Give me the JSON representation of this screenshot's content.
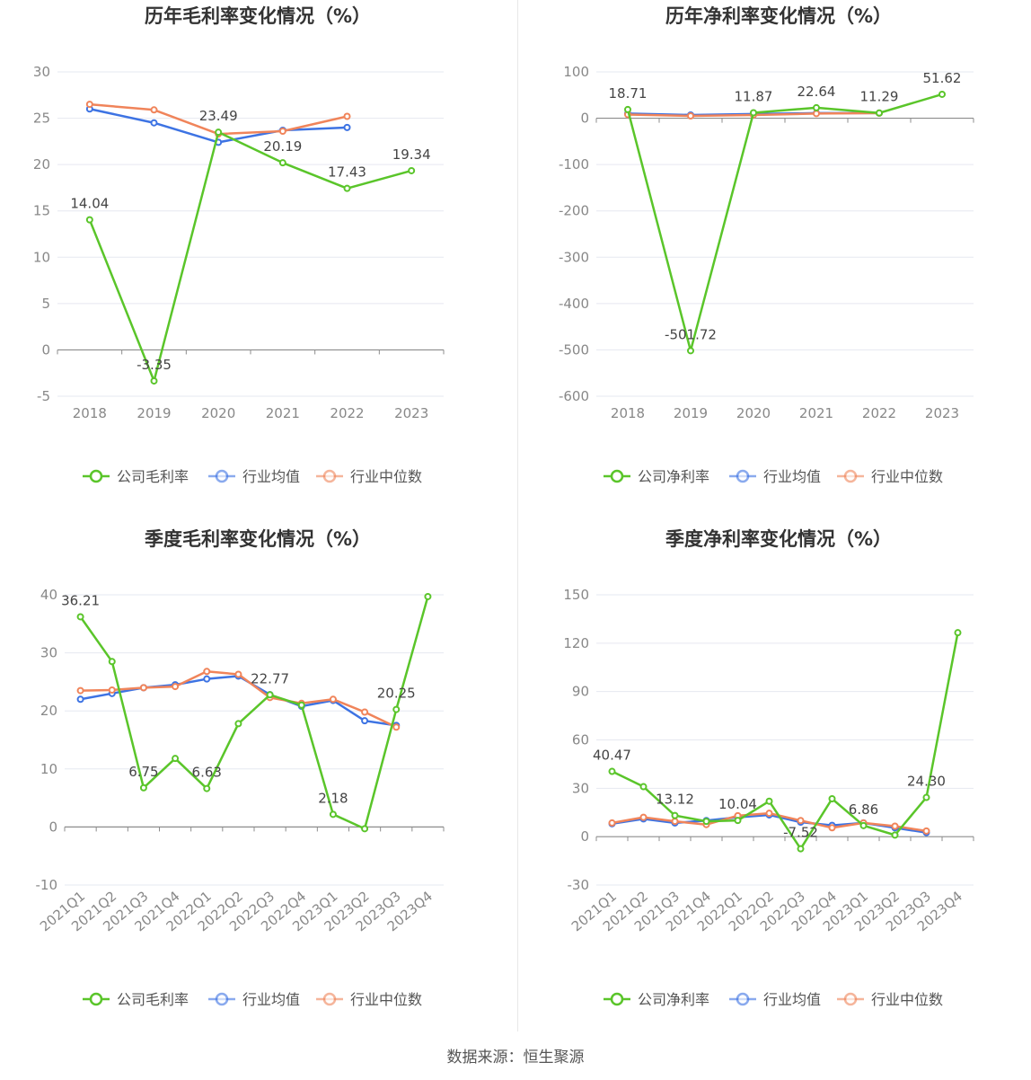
{
  "colors": {
    "company": "#5ac52a",
    "industry_avg": "#3d73e3",
    "industry_median": "#f0845a",
    "grid": "#e6e8f0",
    "axis": "#8c8c8c",
    "text": "#666666",
    "title": "#333333"
  },
  "legend": {
    "series_gross": "公司毛利率",
    "series_net": "公司净利率",
    "industry_avg": "行业均值",
    "industry_median": "行业中位数"
  },
  "source": "数据来源：恒生聚源",
  "chart_data": [
    {
      "type": "line",
      "title": "历年毛利率变化情况（%）",
      "categories": [
        "2018",
        "2019",
        "2020",
        "2021",
        "2022",
        "2023"
      ],
      "ylim": [
        -5,
        30
      ],
      "yticks": [
        -5,
        0,
        5,
        10,
        15,
        20,
        25,
        30
      ],
      "legend_position": "bottom",
      "grid": true,
      "series": [
        {
          "name": "公司毛利率",
          "role": "company",
          "values": [
            14.04,
            -3.35,
            23.49,
            20.19,
            17.43,
            19.34
          ],
          "labels": [
            "14.04",
            "-3.35",
            "23.49",
            "20.19",
            "17.43",
            "19.34"
          ]
        },
        {
          "name": "行业均值",
          "role": "industry_avg",
          "values": [
            26.0,
            24.5,
            22.4,
            23.7,
            24.0,
            null
          ]
        },
        {
          "name": "行业中位数",
          "role": "industry_median",
          "values": [
            26.5,
            25.9,
            23.3,
            23.6,
            25.2,
            null
          ]
        }
      ]
    },
    {
      "type": "line",
      "title": "历年净利率变化情况（%）",
      "categories": [
        "2018",
        "2019",
        "2020",
        "2021",
        "2022",
        "2023"
      ],
      "ylim": [
        -600,
        100
      ],
      "yticks": [
        -600,
        -500,
        -400,
        -300,
        -200,
        -100,
        0,
        100
      ],
      "legend_position": "bottom",
      "grid": true,
      "series": [
        {
          "name": "公司净利率",
          "role": "company",
          "values": [
            18.71,
            -501.72,
            11.87,
            22.64,
            11.29,
            51.62
          ],
          "labels": [
            "18.71",
            "-501.72",
            "11.87",
            "22.64",
            "11.29",
            "51.62"
          ]
        },
        {
          "name": "行业均值",
          "role": "industry_avg",
          "values": [
            10.0,
            7.0,
            9.0,
            11.0,
            11.0,
            null
          ]
        },
        {
          "name": "行业中位数",
          "role": "industry_median",
          "values": [
            8.0,
            5.0,
            7.0,
            10.0,
            11.0,
            null
          ]
        }
      ]
    },
    {
      "type": "line",
      "title": "季度毛利率变化情况（%）",
      "categories": [
        "2021Q1",
        "2021Q2",
        "2021Q3",
        "2021Q4",
        "2022Q1",
        "2022Q2",
        "2022Q3",
        "2022Q4",
        "2023Q1",
        "2023Q2",
        "2023Q3",
        "2023Q4"
      ],
      "ylim": [
        -10,
        40
      ],
      "yticks": [
        -10,
        0,
        10,
        20,
        30,
        40
      ],
      "legend_position": "bottom",
      "grid": true,
      "series": [
        {
          "name": "公司毛利率",
          "role": "company",
          "values": [
            36.21,
            28.5,
            6.75,
            11.8,
            6.63,
            17.8,
            22.77,
            21.0,
            2.18,
            -0.3,
            20.25,
            39.7
          ],
          "labels": [
            "36.21",
            "",
            "6.75",
            "",
            "6.63",
            "",
            "22.77",
            "",
            "2.18",
            "",
            "20.25",
            ""
          ]
        },
        {
          "name": "行业均值",
          "role": "industry_avg",
          "values": [
            22.0,
            23.0,
            24.0,
            24.5,
            25.5,
            26.0,
            22.8,
            20.8,
            21.8,
            18.3,
            17.5,
            null
          ]
        },
        {
          "name": "行业中位数",
          "role": "industry_median",
          "values": [
            23.5,
            23.6,
            24.0,
            24.2,
            26.8,
            26.3,
            22.3,
            21.3,
            22.0,
            19.8,
            17.2,
            null
          ]
        }
      ]
    },
    {
      "type": "line",
      "title": "季度净利率变化情况（%）",
      "categories": [
        "2021Q1",
        "2021Q2",
        "2021Q3",
        "2021Q4",
        "2022Q1",
        "2022Q2",
        "2022Q3",
        "2022Q4",
        "2023Q1",
        "2023Q2",
        "2023Q3",
        "2023Q4"
      ],
      "ylim": [
        -30,
        150
      ],
      "yticks": [
        -30,
        0,
        30,
        60,
        90,
        120,
        150
      ],
      "legend_position": "bottom",
      "grid": true,
      "series": [
        {
          "name": "公司净利率",
          "role": "company",
          "values": [
            40.47,
            31.0,
            13.12,
            9.5,
            10.04,
            22.0,
            -7.52,
            23.5,
            6.86,
            1.0,
            24.3,
            126.5
          ],
          "labels": [
            "40.47",
            "",
            "13.12",
            "",
            "10.04",
            "",
            "-7.52",
            "",
            "6.86",
            "",
            "24.30",
            ""
          ]
        },
        {
          "name": "行业均值",
          "role": "industry_avg",
          "values": [
            8.0,
            11.0,
            8.5,
            10.0,
            12.0,
            13.5,
            9.0,
            7.0,
            8.5,
            5.5,
            2.5,
            null
          ]
        },
        {
          "name": "行业中位数",
          "role": "industry_median",
          "values": [
            8.5,
            12.0,
            9.5,
            7.5,
            13.0,
            14.5,
            10.0,
            5.5,
            8.5,
            6.5,
            3.5,
            null
          ]
        }
      ]
    }
  ]
}
